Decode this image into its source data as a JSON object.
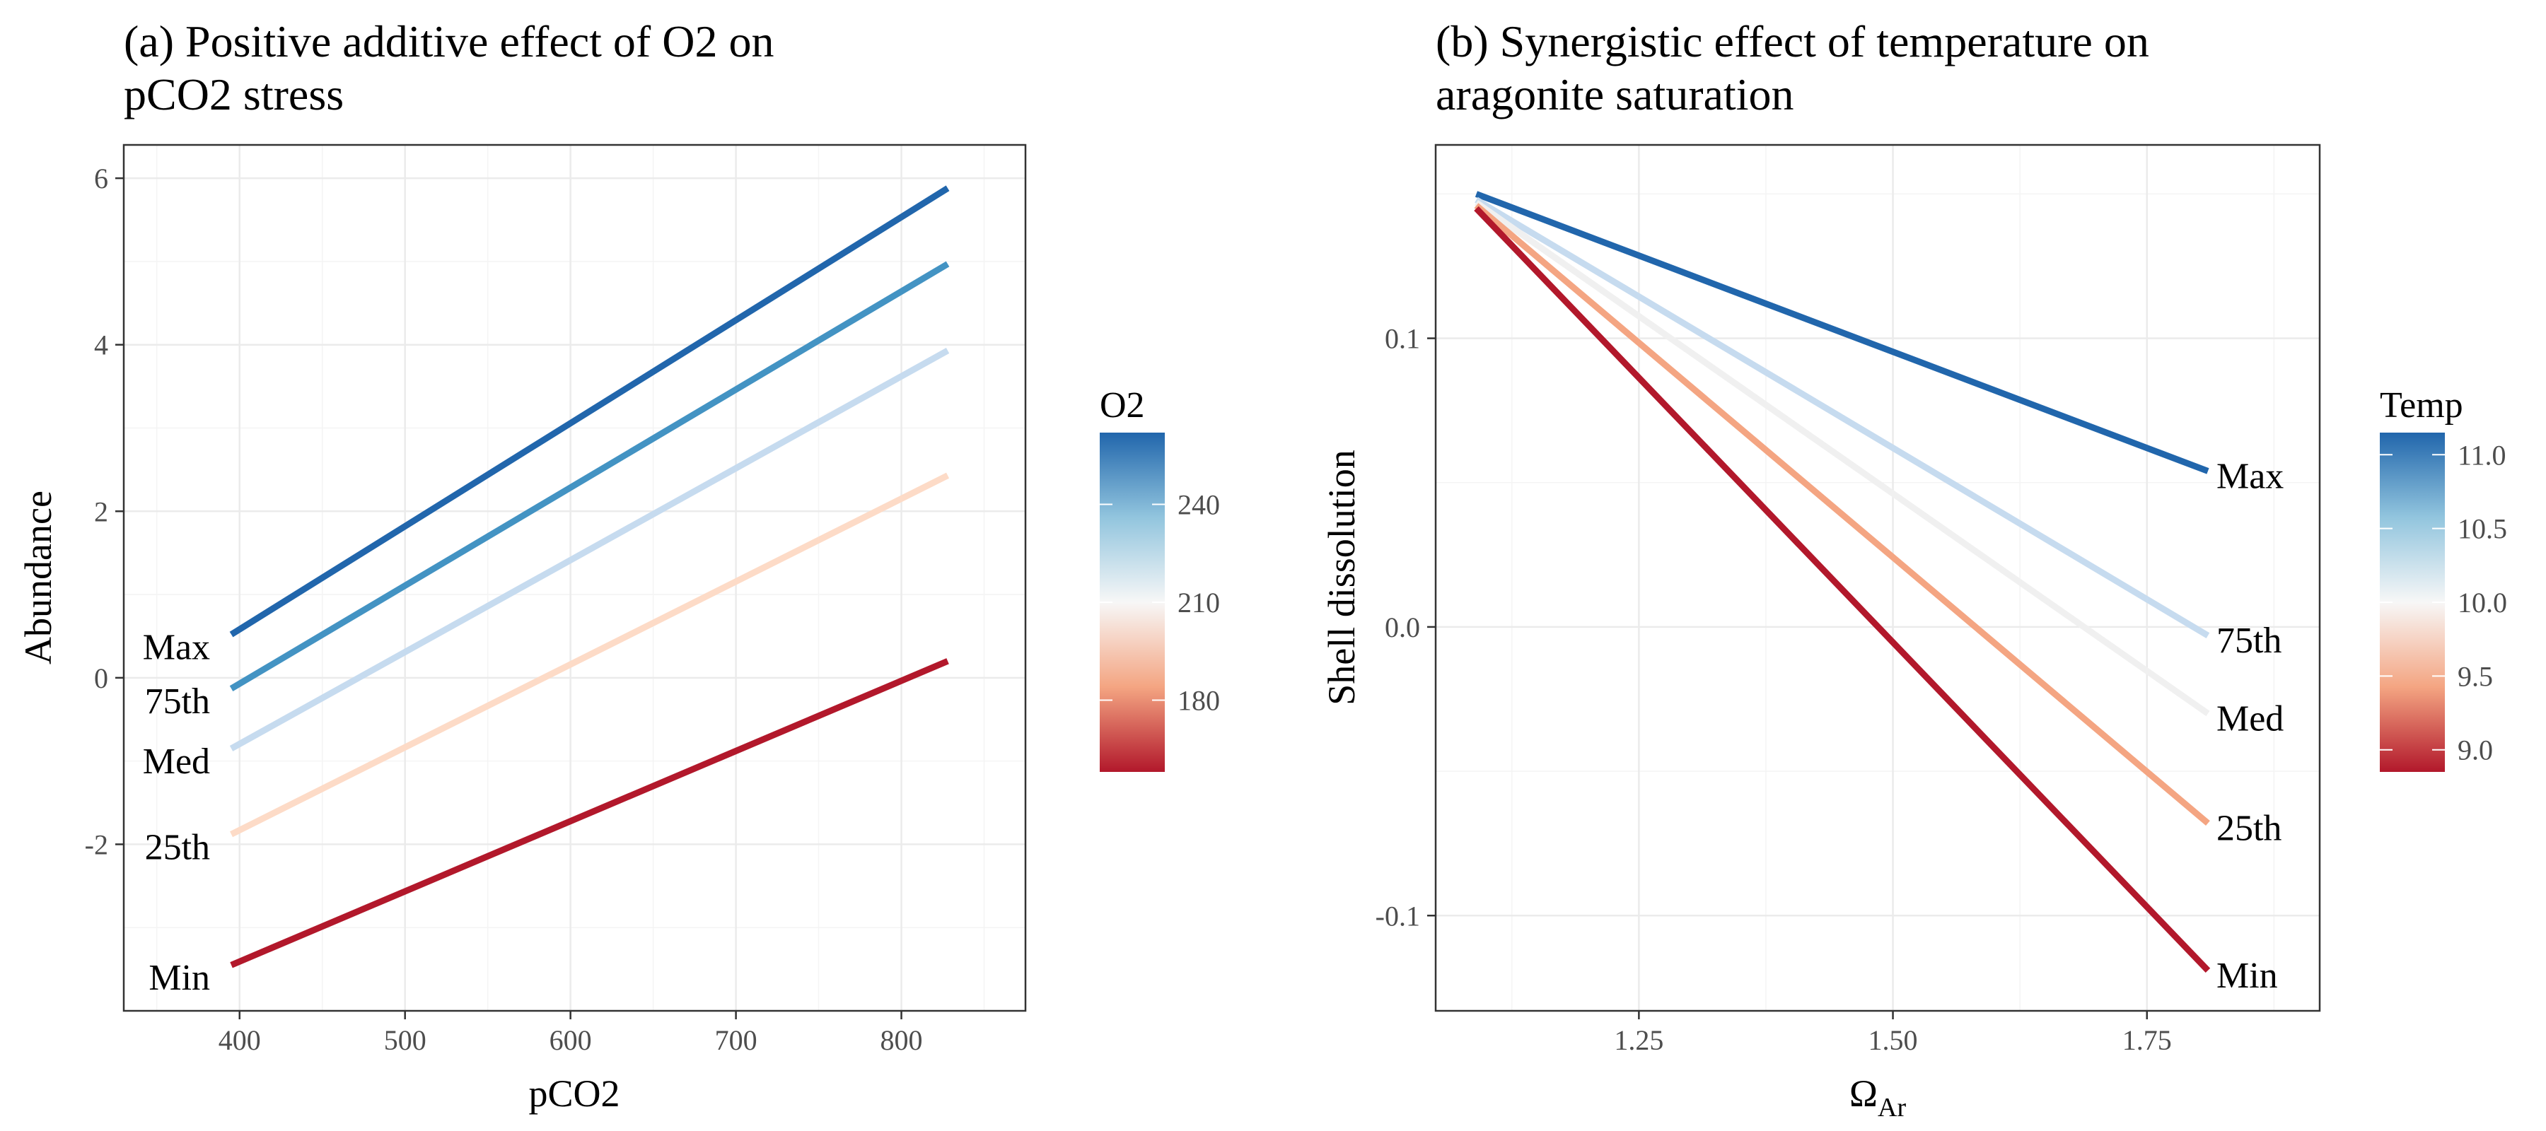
{
  "chart_data": [
    {
      "type": "line",
      "title": [
        "(a) Positive additive effect of O2 on",
        "pCO2 stress"
      ],
      "xlabel": "pCO2",
      "ylabel": "Abundance",
      "xlim": [
        330,
        875
      ],
      "ylim": [
        -4.0,
        6.4
      ],
      "xticks": [
        400,
        500,
        600,
        700,
        800
      ],
      "yticks": [
        -2,
        0,
        2,
        4,
        6
      ],
      "grid": true,
      "legend": {
        "title": "O2",
        "position": "right",
        "type": "colorbar",
        "range": [
          158,
          262
        ],
        "ticks": [
          180,
          210,
          240
        ],
        "colors": [
          "#b2182b",
          "#f4a582",
          "#f7f7f7",
          "#92c5de",
          "#2166ac"
        ]
      },
      "label_side": "start",
      "series": [
        {
          "name": "Max",
          "x": [
            395,
            828
          ],
          "y": [
            0.52,
            5.88
          ],
          "color": "#2166ac"
        },
        {
          "name": "75th",
          "x": [
            395,
            828
          ],
          "y": [
            -0.13,
            4.97
          ],
          "color": "#4393c3"
        },
        {
          "name": "Med",
          "x": [
            395,
            828
          ],
          "y": [
            -0.85,
            3.93
          ],
          "color": "#c6dbef"
        },
        {
          "name": "25th",
          "x": [
            395,
            828
          ],
          "y": [
            -1.88,
            2.43
          ],
          "color": "#fddbc7"
        },
        {
          "name": "Min",
          "x": [
            395,
            828
          ],
          "y": [
            -3.45,
            0.2
          ],
          "color": "#b2182b"
        }
      ]
    },
    {
      "type": "line",
      "title": [
        "(b) Synergistic effect of temperature on",
        "aragonite saturation"
      ],
      "xlabel": "Ω",
      "xlabel_sub": "Ar",
      "ylabel": "Shell dissolution",
      "xlim": [
        1.05,
        1.92
      ],
      "ylim": [
        -0.133,
        0.167
      ],
      "xticks": [
        1.25,
        1.5,
        1.75
      ],
      "yticks": [
        -0.1,
        0.0,
        0.1
      ],
      "grid": true,
      "legend": {
        "title": "Temp",
        "position": "right",
        "type": "colorbar",
        "range": [
          8.85,
          11.15
        ],
        "ticks": [
          9.0,
          9.5,
          10.0,
          10.5,
          11.0
        ],
        "colors": [
          "#b2182b",
          "#f4a582",
          "#f7f7f7",
          "#92c5de",
          "#2166ac"
        ]
      },
      "label_side": "end",
      "series": [
        {
          "name": "Max",
          "x": [
            1.09,
            1.81
          ],
          "y": [
            0.15,
            0.054
          ],
          "color": "#2166ac"
        },
        {
          "name": "75th",
          "x": [
            1.09,
            1.81
          ],
          "y": [
            0.148,
            -0.003
          ],
          "color": "#c6dbef"
        },
        {
          "name": "Med",
          "x": [
            1.09,
            1.81
          ],
          "y": [
            0.147,
            -0.03
          ],
          "color": "#f0f0f0"
        },
        {
          "name": "25th",
          "x": [
            1.09,
            1.81
          ],
          "y": [
            0.146,
            -0.068
          ],
          "color": "#f4a582"
        },
        {
          "name": "Min",
          "x": [
            1.09,
            1.81
          ],
          "y": [
            0.145,
            -0.119
          ],
          "color": "#b2182b"
        }
      ]
    }
  ]
}
